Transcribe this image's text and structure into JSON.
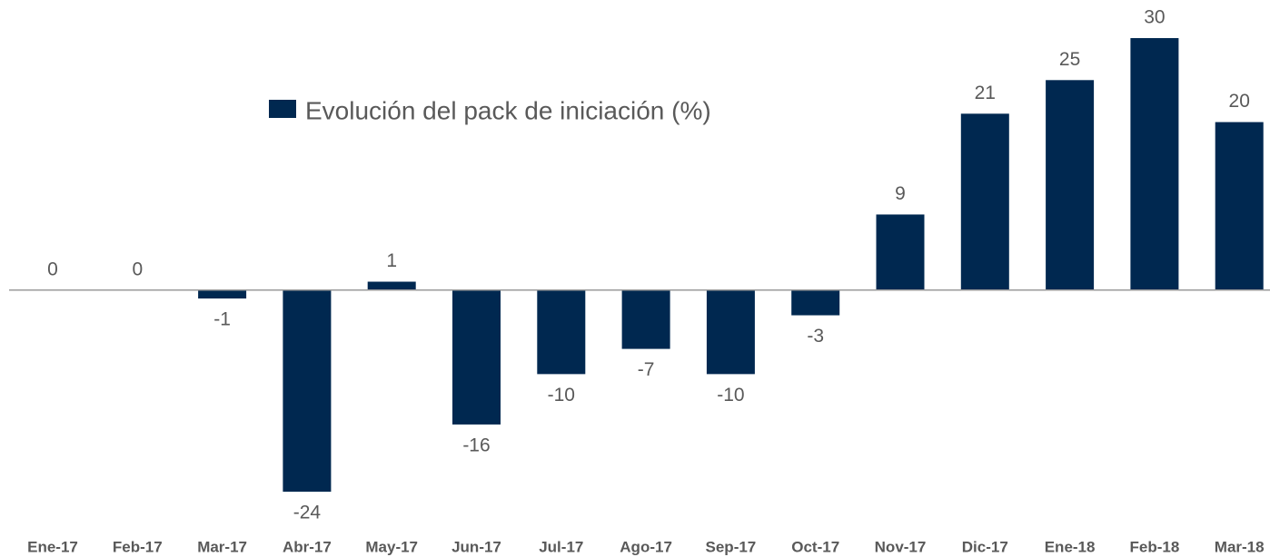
{
  "chart_data": {
    "type": "bar",
    "series": [
      {
        "name": "Evolución del pack de iniciación (%)",
        "color": "#002850",
        "values": [
          0,
          0,
          -1,
          -24,
          1,
          -16,
          -10,
          -7,
          -10,
          -3,
          9,
          21,
          25,
          30,
          20
        ]
      }
    ],
    "categories": [
      "Ene-17",
      "Feb-17",
      "Mar-17",
      "Abr-17",
      "May-17",
      "Jun-17",
      "Jul-17",
      "Ago-17",
      "Sep-17",
      "Oct-17",
      "Nov-17",
      "Dic-17",
      "Ene-18",
      "Feb-18",
      "Mar-18"
    ],
    "ylim": [
      -24,
      30
    ]
  }
}
